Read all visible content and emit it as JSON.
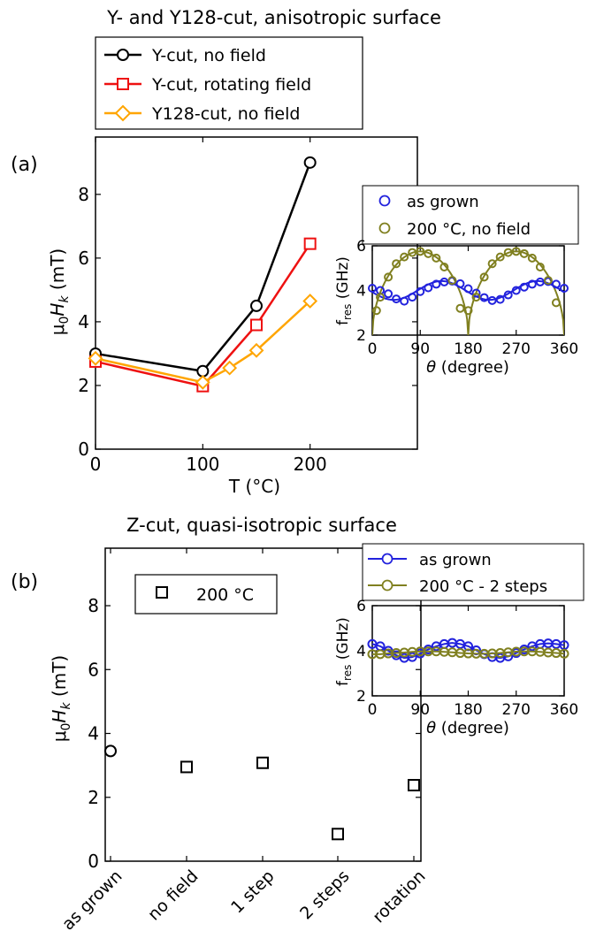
{
  "chart_data": [
    {
      "id": "a",
      "panel_label": "(a)",
      "type": "line",
      "title": "Y- and Y128-cut, anisotropic surface",
      "xlabel": "T (°C)",
      "ylabel": "μ0Hk (mT)",
      "xlim": [
        0,
        300
      ],
      "ylim": [
        0,
        9.8
      ],
      "xticks": [
        0,
        100,
        200
      ],
      "yticks": [
        0,
        2,
        4,
        6,
        8
      ],
      "legend_position": "above plot",
      "series": [
        {
          "name": "Y-cut, no field",
          "color": "#000000",
          "marker": "circle",
          "x": [
            0,
            100,
            150,
            200
          ],
          "y": [
            3.0,
            2.45,
            4.5,
            9.0
          ]
        },
        {
          "name": "Y-cut, rotating field",
          "color": "#ee1111",
          "marker": "square",
          "x": [
            0,
            100,
            150,
            200
          ],
          "y": [
            2.75,
            1.98,
            3.9,
            6.45
          ]
        },
        {
          "name": "Y128-cut, no field",
          "color": "#ffa500",
          "marker": "diamond",
          "x": [
            0,
            100,
            125,
            150,
            200
          ],
          "y": [
            2.85,
            2.1,
            2.55,
            3.1,
            4.65
          ]
        }
      ]
    },
    {
      "id": "a_inset",
      "type": "scatter",
      "xlabel": "θ (degree)",
      "ylabel": "fres (GHz)",
      "xlim": [
        0,
        360
      ],
      "ylim": [
        2,
        6
      ],
      "xticks": [
        0,
        90,
        180,
        270,
        360
      ],
      "yticks": [
        2,
        4,
        6
      ],
      "legend_position": "above plot",
      "series": [
        {
          "name": "as grown",
          "color": "#2222dd",
          "marker": "circle",
          "x": [
            0,
            15,
            30,
            45,
            60,
            75,
            90,
            105,
            120,
            135,
            150,
            165,
            180,
            195,
            210,
            225,
            240,
            255,
            270,
            285,
            300,
            315,
            330,
            345,
            360
          ],
          "y": [
            4.1,
            4.0,
            3.85,
            3.62,
            3.52,
            3.7,
            3.95,
            4.12,
            4.28,
            4.38,
            4.42,
            4.3,
            4.08,
            3.88,
            3.68,
            3.55,
            3.6,
            3.8,
            4.0,
            4.15,
            4.28,
            4.38,
            4.4,
            4.28,
            4.1
          ]
        },
        {
          "name": "200 °C, no field",
          "color": "#808020",
          "marker": "circle",
          "x": [
            8,
            15,
            30,
            45,
            60,
            75,
            90,
            105,
            120,
            135,
            150,
            165,
            180,
            195,
            210,
            225,
            240,
            255,
            270,
            285,
            300,
            315,
            330,
            345
          ],
          "y": [
            3.1,
            3.7,
            4.6,
            5.2,
            5.5,
            5.7,
            5.75,
            5.65,
            5.45,
            5.05,
            4.45,
            3.2,
            3.1,
            3.7,
            4.6,
            5.2,
            5.5,
            5.7,
            5.75,
            5.65,
            5.45,
            5.05,
            4.45,
            3.45
          ]
        }
      ]
    },
    {
      "id": "b",
      "panel_label": "(b)",
      "type": "scatter",
      "title": "Z-cut, quasi-isotropic surface",
      "xlabel": "",
      "ylabel": "μ0Hk (mT)",
      "categories": [
        "as grown",
        "no field",
        "1 step",
        "2 steps",
        "rotation"
      ],
      "ylim": [
        0,
        9.8
      ],
      "yticks": [
        0,
        2,
        4,
        6,
        8
      ],
      "legend_position": "top-left",
      "series": [
        {
          "name": "",
          "color": "#000000",
          "marker": "circle",
          "category_index": [
            0
          ],
          "values": [
            3.45
          ]
        },
        {
          "name": "200 °C",
          "color": "#000000",
          "marker": "square",
          "category_index": [
            1,
            2,
            3,
            4
          ],
          "values": [
            2.95,
            3.08,
            0.85,
            2.38
          ]
        }
      ]
    },
    {
      "id": "b_inset",
      "type": "line",
      "xlabel": "θ (degree)",
      "ylabel": "fres (GHz)",
      "xlim": [
        0,
        360
      ],
      "ylim": [
        2,
        6
      ],
      "xticks": [
        0,
        90,
        180,
        270,
        360
      ],
      "yticks": [
        2,
        4,
        6
      ],
      "legend_position": "above plot",
      "series": [
        {
          "name": "as grown",
          "color": "#2222dd",
          "marker": "circle",
          "x": [
            0,
            15,
            30,
            45,
            60,
            75,
            90,
            105,
            120,
            135,
            150,
            165,
            180,
            195,
            210,
            225,
            240,
            255,
            270,
            285,
            300,
            315,
            330,
            345,
            360
          ],
          "y": [
            4.3,
            4.2,
            4.0,
            3.8,
            3.68,
            3.72,
            3.88,
            4.06,
            4.2,
            4.3,
            4.35,
            4.3,
            4.2,
            4.02,
            3.85,
            3.72,
            3.68,
            3.75,
            3.9,
            4.06,
            4.2,
            4.3,
            4.33,
            4.3,
            4.25
          ]
        },
        {
          "name": "200 °C - 2 steps",
          "color": "#808020",
          "marker": "circle",
          "x": [
            0,
            15,
            30,
            45,
            60,
            75,
            90,
            105,
            120,
            135,
            150,
            165,
            180,
            195,
            210,
            225,
            240,
            255,
            270,
            285,
            300,
            315,
            330,
            345,
            360
          ],
          "y": [
            3.85,
            3.85,
            3.88,
            3.9,
            3.92,
            3.95,
            3.97,
            3.97,
            3.97,
            3.95,
            3.93,
            3.9,
            3.88,
            3.87,
            3.87,
            3.88,
            3.9,
            3.93,
            3.96,
            3.97,
            3.97,
            3.95,
            3.92,
            3.9,
            3.87
          ]
        }
      ]
    }
  ]
}
